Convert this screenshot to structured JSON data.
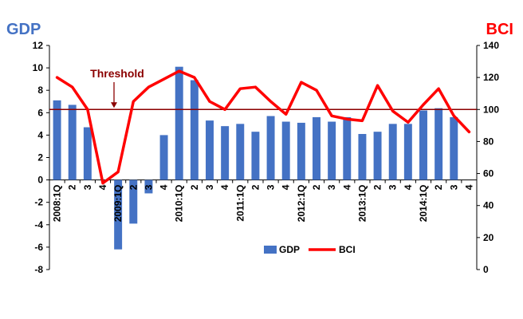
{
  "chart_data": {
    "type": "bar",
    "ylabel_left": "GDP",
    "ylabel_right": "BCI",
    "colors": {
      "gdp": "#4472C4",
      "bci": "#FF0000",
      "threshold": "#8B0000",
      "axis": "#000000"
    },
    "y_left": {
      "min": -8,
      "max": 12,
      "ticks": [
        12,
        10,
        8,
        6,
        4,
        2,
        0,
        -2,
        -4,
        -6,
        -8
      ]
    },
    "y_right": {
      "min": 0,
      "max": 140,
      "ticks": [
        140,
        120,
        100,
        80,
        60,
        40,
        20,
        0
      ]
    },
    "categories": [
      "2008:1Q",
      "2",
      "3",
      "4",
      "2009:1Q",
      "2",
      "3",
      "4",
      "2010:1Q",
      "2",
      "3",
      "4",
      "2011:1Q",
      "2",
      "3",
      "4",
      "2012:1Q",
      "2",
      "3",
      "4",
      "2013:1Q",
      "2",
      "3",
      "4",
      "2014:1Q",
      "2",
      "3",
      "4"
    ],
    "series": [
      {
        "name": "GDP",
        "type": "bar",
        "axis": "left",
        "values": [
          7.1,
          6.7,
          4.7,
          null,
          -6.2,
          -3.9,
          -1.2,
          4.0,
          10.1,
          8.9,
          5.3,
          4.8,
          5.0,
          4.3,
          5.7,
          5.2,
          5.1,
          5.6,
          5.2,
          5.6,
          4.1,
          4.3,
          5.0,
          5.0,
          6.2,
          6.4,
          5.6,
          null
        ]
      },
      {
        "name": "BCI",
        "type": "line",
        "axis": "right",
        "values": [
          120,
          114,
          100,
          54,
          61,
          105,
          114,
          119,
          124,
          120,
          105,
          100,
          113,
          114,
          105,
          97,
          117,
          112,
          96,
          94,
          93,
          115,
          99,
          92,
          103,
          113,
          96,
          86
        ]
      }
    ],
    "threshold": {
      "label": "Threshold",
      "value": 100,
      "axis": "right"
    },
    "legend": {
      "position": "bottom-center"
    },
    "grid": false
  }
}
